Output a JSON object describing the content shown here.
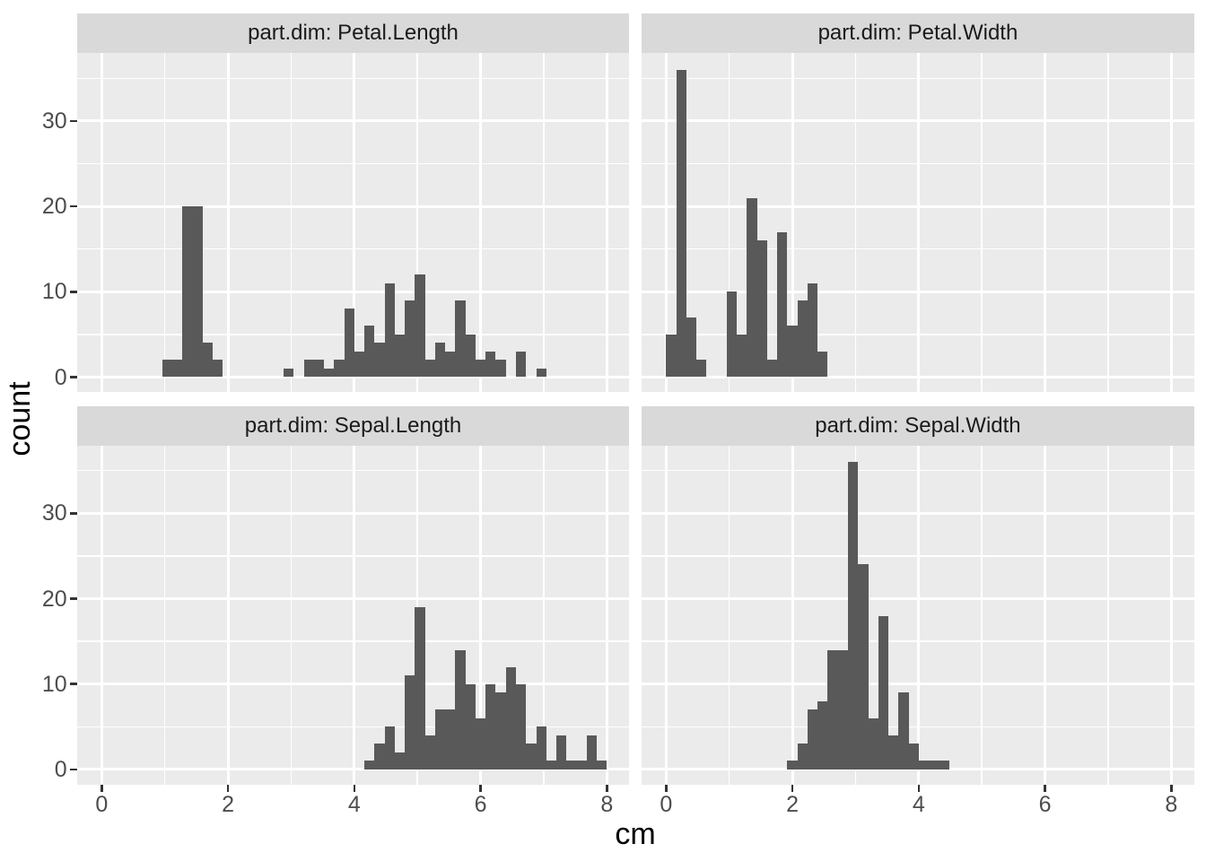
{
  "figure": {
    "background": "#FFFFFF"
  },
  "axes": {
    "x_title": "cm",
    "y_title": "count",
    "x_tick_labels": [
      "0",
      "2",
      "4",
      "6",
      "8"
    ],
    "x_tick_values": [
      0,
      2,
      4,
      6,
      8
    ],
    "y_tick_labels": [
      "0",
      "10",
      "20",
      "30"
    ],
    "y_tick_values": [
      0,
      10,
      20,
      30
    ],
    "x_minor_values": [
      1,
      3,
      5,
      7
    ],
    "y_minor_values": [
      5,
      15,
      25,
      35
    ]
  },
  "theme": {
    "panel_background": "#EBEBEB",
    "strip_background": "#D9D9D9",
    "strip_text_color": "#1A1A1A",
    "bar_fill": "#595959",
    "gridline_color": "#FFFFFF",
    "tick_color": "#333333",
    "tick_label_color": "#4D4D4D",
    "title_color": "#000000"
  },
  "chart_data": {
    "type": "bar",
    "subtype": "faceted-histogram",
    "dataset": "iris measurements in long format, faceted by part.dim",
    "xlabel": "cm",
    "ylabel": "count",
    "x_range_shown": [
      -0.4,
      8.4
    ],
    "y_range_shown": [
      -1.8,
      37.8
    ],
    "grid": "on",
    "legend": "none",
    "facets": [
      {
        "label": "part.dim: Petal.Length",
        "grid_row": 0,
        "grid_col": 0,
        "bin_start": 0.96,
        "bin_width": 0.16,
        "counts": [
          2,
          2,
          20,
          20,
          4,
          2,
          0,
          0,
          0,
          0,
          0,
          0,
          1,
          0,
          2,
          2,
          1,
          2,
          8,
          3,
          6,
          4,
          11,
          5,
          9,
          12,
          2,
          4,
          3,
          9,
          5,
          2,
          3,
          2,
          0,
          3,
          0,
          1
        ]
      },
      {
        "label": "part.dim: Petal.Width",
        "grid_row": 0,
        "grid_col": 1,
        "bin_start": 0.0,
        "bin_width": 0.16,
        "counts": [
          5,
          36,
          7,
          2,
          0,
          0,
          10,
          5,
          21,
          16,
          2,
          17,
          6,
          9,
          11,
          3
        ]
      },
      {
        "label": "part.dim: Sepal.Length",
        "grid_row": 1,
        "grid_col": 0,
        "bin_start": 4.16,
        "bin_width": 0.16,
        "counts": [
          1,
          3,
          5,
          2,
          11,
          19,
          4,
          7,
          7,
          14,
          10,
          6,
          10,
          9,
          12,
          10,
          3,
          5,
          1,
          4,
          1,
          1,
          4,
          1
        ]
      },
      {
        "label": "part.dim: Sepal.Width",
        "grid_row": 1,
        "grid_col": 1,
        "bin_start": 1.92,
        "bin_width": 0.16,
        "counts": [
          1,
          3,
          7,
          8,
          14,
          14,
          36,
          24,
          6,
          18,
          4,
          9,
          3,
          1,
          1,
          1
        ]
      }
    ]
  }
}
